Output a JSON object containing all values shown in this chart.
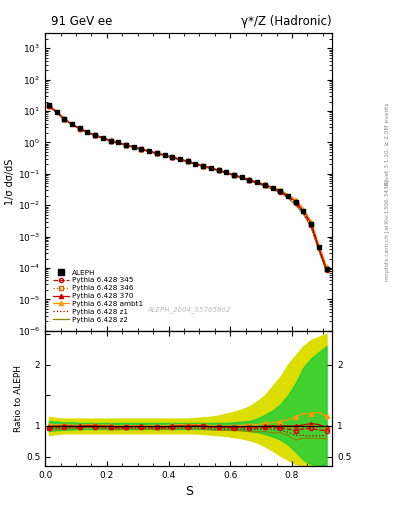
{
  "title_left": "91 GeV ee",
  "title_right": "γ*/Z (Hadronic)",
  "ylabel_main": "1/σ dσ/dS",
  "xlabel": "S",
  "ylabel_ratio": "Ratio to ALEPH",
  "right_label_top": "Rivet 3.1.10, ≥ 2.5M events",
  "right_label_bot": "mcplots.cern.ch [arXiv:1306.3436]",
  "watermark": "ALEPH_2004_S5765862",
  "ylim_main": [
    1e-06,
    3000
  ],
  "ylim_ratio": [
    0.35,
    2.55
  ],
  "xlim": [
    0.0,
    0.93
  ],
  "aleph_x": [
    0.012,
    0.037,
    0.062,
    0.087,
    0.112,
    0.137,
    0.162,
    0.187,
    0.212,
    0.237,
    0.262,
    0.287,
    0.312,
    0.337,
    0.362,
    0.387,
    0.412,
    0.437,
    0.462,
    0.487,
    0.512,
    0.537,
    0.562,
    0.587,
    0.612,
    0.637,
    0.662,
    0.687,
    0.712,
    0.737,
    0.762,
    0.787,
    0.812,
    0.837,
    0.862,
    0.887,
    0.912
  ],
  "aleph_y": [
    15.0,
    9.5,
    5.5,
    3.8,
    2.8,
    2.1,
    1.7,
    1.4,
    1.15,
    1.0,
    0.85,
    0.72,
    0.62,
    0.53,
    0.46,
    0.4,
    0.34,
    0.29,
    0.25,
    0.21,
    0.18,
    0.155,
    0.132,
    0.112,
    0.094,
    0.078,
    0.065,
    0.054,
    0.044,
    0.036,
    0.028,
    0.02,
    0.013,
    0.0065,
    0.0025,
    0.00045,
    9.5e-05
  ],
  "aleph_yerr": [
    0.4,
    0.2,
    0.1,
    0.07,
    0.05,
    0.035,
    0.028,
    0.022,
    0.017,
    0.014,
    0.012,
    0.01,
    0.009,
    0.008,
    0.007,
    0.006,
    0.005,
    0.004,
    0.0035,
    0.003,
    0.0025,
    0.002,
    0.002,
    0.0015,
    0.0013,
    0.0011,
    0.0009,
    0.0008,
    0.0006,
    0.0005,
    0.0004,
    0.0003,
    0.0002,
    0.00012,
    6e-05,
    1.5e-05,
    4e-06
  ],
  "mc_x": [
    0.012,
    0.037,
    0.062,
    0.087,
    0.112,
    0.137,
    0.162,
    0.187,
    0.212,
    0.237,
    0.262,
    0.287,
    0.312,
    0.337,
    0.362,
    0.387,
    0.412,
    0.437,
    0.462,
    0.487,
    0.512,
    0.537,
    0.562,
    0.587,
    0.612,
    0.637,
    0.662,
    0.687,
    0.712,
    0.737,
    0.762,
    0.787,
    0.812,
    0.837,
    0.862,
    0.887,
    0.912
  ],
  "p345_y": [
    14.5,
    9.3,
    5.45,
    3.75,
    2.75,
    2.1,
    1.68,
    1.38,
    1.13,
    0.97,
    0.83,
    0.71,
    0.61,
    0.52,
    0.45,
    0.39,
    0.335,
    0.288,
    0.247,
    0.21,
    0.179,
    0.152,
    0.129,
    0.109,
    0.091,
    0.076,
    0.063,
    0.052,
    0.043,
    0.035,
    0.027,
    0.019,
    0.012,
    0.0062,
    0.0024,
    0.00042,
    8.8e-05
  ],
  "p346_y": [
    14.6,
    9.35,
    5.47,
    3.77,
    2.76,
    2.11,
    1.69,
    1.39,
    1.135,
    0.975,
    0.835,
    0.712,
    0.612,
    0.521,
    0.451,
    0.391,
    0.337,
    0.289,
    0.248,
    0.211,
    0.18,
    0.153,
    0.13,
    0.11,
    0.092,
    0.077,
    0.064,
    0.053,
    0.0435,
    0.0355,
    0.0275,
    0.0195,
    0.0122,
    0.0063,
    0.00245,
    0.00043,
    9e-05
  ],
  "p370_y": [
    14.8,
    9.5,
    5.5,
    3.8,
    2.78,
    2.12,
    1.7,
    1.4,
    1.14,
    0.98,
    0.84,
    0.715,
    0.615,
    0.525,
    0.454,
    0.393,
    0.338,
    0.291,
    0.249,
    0.212,
    0.18,
    0.153,
    0.13,
    0.11,
    0.092,
    0.077,
    0.064,
    0.053,
    0.044,
    0.036,
    0.028,
    0.02,
    0.013,
    0.0066,
    0.0026,
    0.00046,
    9.3e-05
  ],
  "pambt1_y": [
    15.2,
    9.7,
    5.6,
    3.85,
    2.82,
    2.15,
    1.72,
    1.42,
    1.16,
    1.0,
    0.855,
    0.725,
    0.623,
    0.532,
    0.461,
    0.401,
    0.344,
    0.296,
    0.253,
    0.215,
    0.183,
    0.156,
    0.132,
    0.112,
    0.094,
    0.079,
    0.066,
    0.055,
    0.046,
    0.038,
    0.03,
    0.022,
    0.015,
    0.0078,
    0.003,
    0.00055,
    0.00011
  ],
  "pz1_y": [
    14.3,
    9.1,
    5.35,
    3.7,
    2.71,
    2.07,
    1.65,
    1.36,
    1.11,
    0.955,
    0.82,
    0.695,
    0.598,
    0.51,
    0.441,
    0.383,
    0.328,
    0.282,
    0.241,
    0.205,
    0.174,
    0.148,
    0.125,
    0.106,
    0.089,
    0.074,
    0.061,
    0.051,
    0.042,
    0.034,
    0.026,
    0.018,
    0.011,
    0.0055,
    0.0021,
    0.00038,
    8e-05
  ],
  "pz2_y": [
    14.0,
    8.9,
    5.25,
    3.65,
    2.68,
    2.05,
    1.63,
    1.34,
    1.09,
    0.94,
    0.808,
    0.685,
    0.59,
    0.503,
    0.435,
    0.378,
    0.324,
    0.278,
    0.237,
    0.201,
    0.171,
    0.145,
    0.123,
    0.104,
    0.087,
    0.072,
    0.059,
    0.049,
    0.04,
    0.032,
    0.025,
    0.017,
    0.01,
    0.0052,
    0.002,
    0.00036,
    7.5e-05
  ],
  "band_green_lo": [
    0.92,
    0.93,
    0.94,
    0.94,
    0.95,
    0.95,
    0.95,
    0.95,
    0.95,
    0.95,
    0.95,
    0.95,
    0.95,
    0.95,
    0.95,
    0.95,
    0.95,
    0.95,
    0.95,
    0.95,
    0.95,
    0.95,
    0.95,
    0.95,
    0.94,
    0.93,
    0.92,
    0.9,
    0.87,
    0.83,
    0.78,
    0.7,
    0.58,
    0.45,
    0.38,
    0.35,
    0.35
  ],
  "band_green_hi": [
    1.08,
    1.07,
    1.06,
    1.06,
    1.05,
    1.05,
    1.05,
    1.05,
    1.05,
    1.05,
    1.05,
    1.05,
    1.05,
    1.05,
    1.05,
    1.05,
    1.05,
    1.05,
    1.05,
    1.05,
    1.05,
    1.05,
    1.05,
    1.05,
    1.06,
    1.07,
    1.08,
    1.12,
    1.18,
    1.25,
    1.35,
    1.5,
    1.7,
    1.95,
    2.1,
    2.2,
    2.3
  ],
  "band_yellow_lo": [
    0.85,
    0.87,
    0.88,
    0.88,
    0.88,
    0.88,
    0.88,
    0.88,
    0.88,
    0.88,
    0.88,
    0.88,
    0.88,
    0.88,
    0.88,
    0.88,
    0.88,
    0.88,
    0.88,
    0.88,
    0.87,
    0.86,
    0.85,
    0.84,
    0.82,
    0.8,
    0.77,
    0.73,
    0.67,
    0.6,
    0.52,
    0.45,
    0.38,
    0.35,
    0.35,
    0.35,
    0.35
  ],
  "band_yellow_hi": [
    1.15,
    1.13,
    1.12,
    1.12,
    1.12,
    1.12,
    1.12,
    1.12,
    1.12,
    1.12,
    1.12,
    1.12,
    1.12,
    1.12,
    1.12,
    1.12,
    1.12,
    1.12,
    1.12,
    1.13,
    1.14,
    1.15,
    1.17,
    1.2,
    1.23,
    1.27,
    1.32,
    1.4,
    1.5,
    1.65,
    1.8,
    2.0,
    2.15,
    2.3,
    2.4,
    2.45,
    2.5
  ],
  "color_345": "#cc0000",
  "color_346": "#cc6600",
  "color_370": "#cc0000",
  "color_ambt1": "#ff9900",
  "color_z1": "#bb0000",
  "color_z2": "#888800",
  "color_band_green": "#00cc44",
  "color_band_yellow": "#dddd00"
}
